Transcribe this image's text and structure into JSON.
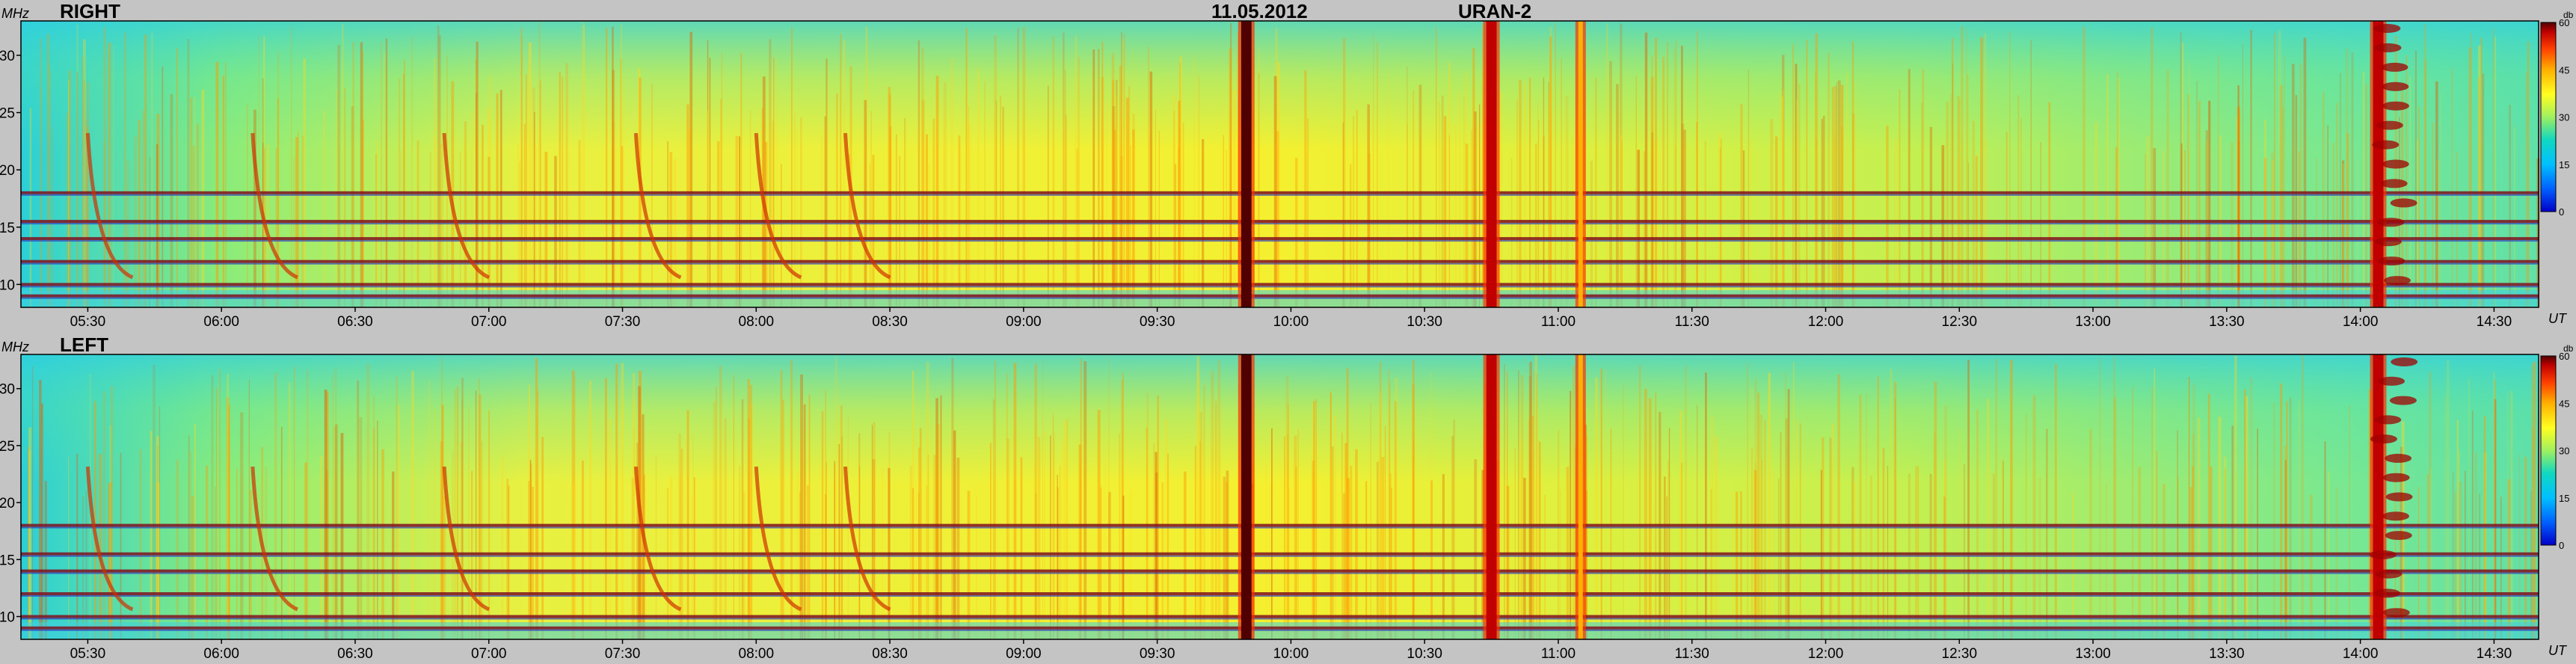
{
  "header": {
    "date": "11.05.2012",
    "instrument": "URAN-2"
  },
  "colors": {
    "background": "#c4c4c4",
    "colormap": [
      "#0000c8",
      "#0060ff",
      "#00c0ff",
      "#10d8c0",
      "#a0f060",
      "#ffff20",
      "#ffb000",
      "#ff4000",
      "#c00000",
      "#500000"
    ]
  },
  "chart_data": [
    {
      "type": "heatmap",
      "title": "RIGHT",
      "ylabel": "MHz",
      "xlabel": "UT",
      "y_ticks": [
        10,
        15,
        20,
        25,
        30
      ],
      "ylim": [
        8,
        33
      ],
      "x_ticks": [
        "05:30",
        "06:00",
        "06:30",
        "07:00",
        "07:30",
        "08:00",
        "08:30",
        "09:00",
        "09:30",
        "10:00",
        "10:30",
        "11:00",
        "11:30",
        "12:00",
        "12:30",
        "13:00",
        "13:30",
        "14:00",
        "14:30"
      ],
      "xlim": [
        "05:15",
        "14:40"
      ],
      "colorbar": {
        "unit": "db",
        "ticks": [
          0,
          15,
          30,
          45,
          60
        ],
        "range": [
          0,
          60
        ]
      },
      "bursts": [
        {
          "time": "09:50",
          "intensity_db": 60
        },
        {
          "time": "10:45",
          "intensity_db": 55
        },
        {
          "time": "11:05",
          "intensity_db": 40
        },
        {
          "time": "14:04",
          "intensity_db": 55
        }
      ],
      "interference_bands_mhz": [
        18.0,
        15.5,
        14.0,
        12.0,
        10.0,
        9.0
      ]
    },
    {
      "type": "heatmap",
      "title": "LEFT",
      "ylabel": "MHz",
      "xlabel": "UT",
      "y_ticks": [
        10,
        15,
        20,
        25,
        30
      ],
      "ylim": [
        8,
        33
      ],
      "x_ticks": [
        "05:30",
        "06:00",
        "06:30",
        "07:00",
        "07:30",
        "08:00",
        "08:30",
        "09:00",
        "09:30",
        "10:00",
        "10:30",
        "11:00",
        "11:30",
        "12:00",
        "12:30",
        "13:00",
        "13:30",
        "14:00",
        "14:30"
      ],
      "xlim": [
        "05:15",
        "14:40"
      ],
      "colorbar": {
        "unit": "db",
        "ticks": [
          0,
          15,
          30,
          45,
          60
        ],
        "range": [
          0,
          60
        ]
      },
      "bursts": [
        {
          "time": "09:50",
          "intensity_db": 60
        },
        {
          "time": "10:45",
          "intensity_db": 55
        },
        {
          "time": "11:05",
          "intensity_db": 40
        },
        {
          "time": "14:04",
          "intensity_db": 55
        }
      ],
      "interference_bands_mhz": [
        18.0,
        15.5,
        14.0,
        12.0,
        10.0,
        9.0
      ]
    }
  ]
}
